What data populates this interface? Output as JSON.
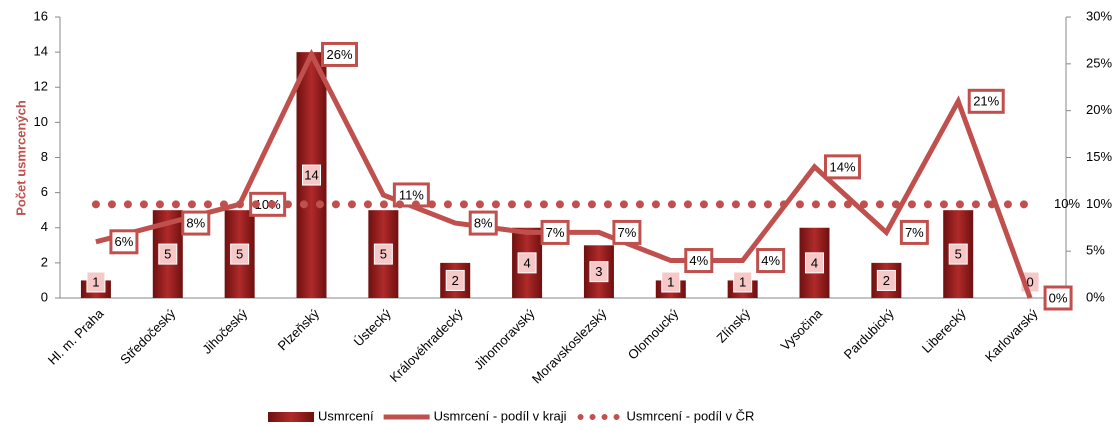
{
  "chart_data": {
    "type": "combo",
    "ylabel": "Počet usmrcených",
    "categories": [
      "Hl. m. Praha",
      "Středočeský",
      "Jihočeský",
      "Plzeňský",
      "Ústecký",
      "Královéhradecký",
      "Jihomoravský",
      "Moravskoslezský",
      "Olomoucký",
      "Zlínský",
      "Vysočina",
      "Pardubický",
      "Liberecký",
      "Karlovarský"
    ],
    "series": [
      {
        "name": "Usmrcení",
        "type": "bar",
        "color": "#8e1b1b",
        "values": [
          1,
          5,
          5,
          14,
          5,
          2,
          4,
          3,
          1,
          1,
          4,
          2,
          5,
          0
        ]
      },
      {
        "name": "Usmrcení - podíl v kraji",
        "type": "line",
        "axis": "y2",
        "color": "#c0504d",
        "values": [
          6,
          8,
          10,
          26,
          11,
          8,
          7,
          7,
          4,
          4,
          14,
          7,
          21,
          0
        ],
        "value_labels": [
          "6%",
          "8%",
          "10%",
          "26%",
          "11%",
          "8%",
          "7%",
          "7%",
          "4%",
          "4%",
          "14%",
          "7%",
          "21%",
          "0%"
        ]
      },
      {
        "name": "Usmrcení - podíl v ČR",
        "type": "dotted",
        "axis": "y2",
        "color": "#c0504d",
        "values": [
          10,
          10,
          10,
          10,
          10,
          10,
          10,
          10,
          10,
          10,
          10,
          10,
          10,
          10
        ],
        "label": "10%"
      }
    ],
    "ylim": [
      0,
      16
    ],
    "yticks": [
      0,
      2,
      4,
      6,
      8,
      10,
      12,
      14,
      16
    ],
    "y2lim": [
      0,
      30
    ],
    "y2ticks": [
      {
        "value": 0,
        "label": "0%"
      },
      {
        "value": 5,
        "label": "5%"
      },
      {
        "value": 10,
        "label": "10%"
      },
      {
        "value": 15,
        "label": "15%"
      },
      {
        "value": 20,
        "label": "20%"
      },
      {
        "value": 25,
        "label": "25%"
      },
      {
        "value": 30,
        "label": "30%"
      }
    ],
    "grid": false,
    "legend": "bottom"
  }
}
